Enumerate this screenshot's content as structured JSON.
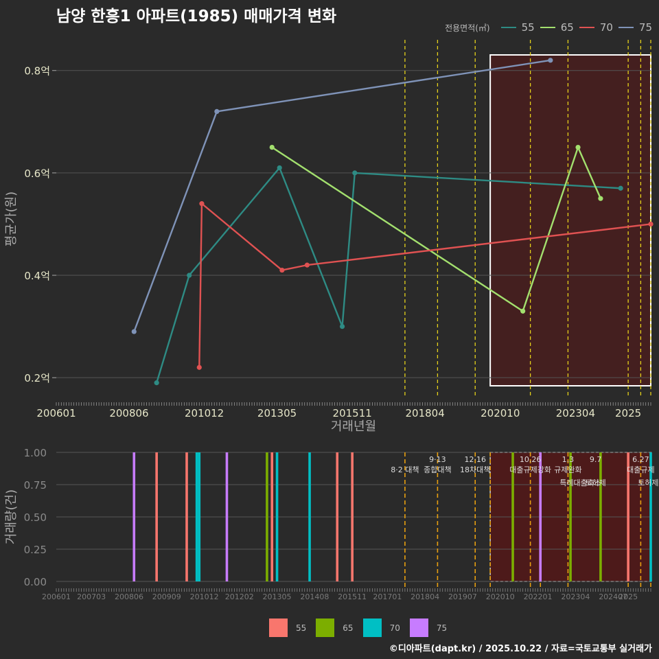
{
  "title": "남양 한흥1 아파트(1985) 매매가격 변화",
  "caption": "©디아파트(dapt.kr) / 2025.10.22 / 자료=국토교통부 실거래가",
  "legend_title": "전용면적(㎡)",
  "colors": {
    "background": "#2a2a2a",
    "grid": "#555555",
    "policy_line": "#e6d21a",
    "policy_line_bottom": "#e8a010",
    "highlight_fill": "#5a1616",
    "highlight_border": "#ffffff",
    "price_55": "#2e8b84",
    "price_65": "#a3e06e",
    "price_70": "#e05252",
    "price_75": "#7f93b8",
    "vol_55": "#f8766d",
    "vol_65": "#7cae00",
    "vol_70": "#00bfc4",
    "vol_75": "#c77cff"
  },
  "chart_data": [
    {
      "type": "line",
      "title": "남양 한흥1 아파트(1985) 매매가격 변화",
      "xlabel": "거래년월",
      "ylabel": "평균가(원)",
      "x_range": [
        "2006-01",
        "2025-10"
      ],
      "ylim": [
        0.16,
        0.86
      ],
      "y_ticks": [
        0.2,
        0.4,
        0.6,
        0.8
      ],
      "y_tick_labels": [
        "0.2억",
        "0.4억",
        "0.6억",
        "0.8억"
      ],
      "x_tick_labels": [
        "200601",
        "200806",
        "201012",
        "201305",
        "201511",
        "201804",
        "202010",
        "202304",
        "2025"
      ],
      "series": [
        {
          "name": "55",
          "points": [
            [
              "2009-05",
              0.19
            ],
            [
              "2010-06",
              0.4
            ],
            [
              "2013-06",
              0.61
            ],
            [
              "2015-07",
              0.3
            ],
            [
              "2015-12",
              0.6
            ],
            [
              "2024-10",
              0.57
            ]
          ]
        },
        {
          "name": "65",
          "points": [
            [
              "2013-03",
              0.65
            ],
            [
              "2021-07",
              0.33
            ],
            [
              "2023-05",
              0.65
            ],
            [
              "2024-02",
              0.55
            ]
          ]
        },
        {
          "name": "70",
          "points": [
            [
              "2010-10",
              0.22
            ],
            [
              "2010-11",
              0.54
            ],
            [
              "2013-07",
              0.41
            ],
            [
              "2014-05",
              0.42
            ],
            [
              "2025-10",
              0.5
            ]
          ]
        },
        {
          "name": "75",
          "points": [
            [
              "2008-08",
              0.29
            ],
            [
              "2011-05",
              0.72
            ],
            [
              "2022-06",
              0.82
            ]
          ]
        }
      ],
      "policy_events": [
        "2017-08",
        "2018-09",
        "2019-12",
        "2021-10",
        "2023-01",
        "2025-01",
        "2025-06",
        "2025-10"
      ],
      "highlight_range": [
        "2020-06",
        "2025-10"
      ]
    },
    {
      "type": "bar",
      "xlabel": "",
      "ylabel": "거래량(건)",
      "x_range": [
        "2006-01",
        "2025-10"
      ],
      "ylim": [
        0,
        1.0
      ],
      "y_ticks": [
        0,
        0.25,
        0.5,
        0.75,
        1.0
      ],
      "y_tick_labels": [
        "0.00",
        "0.25",
        "0.50",
        "0.75",
        "1.00"
      ],
      "x_tick_labels": [
        "200601",
        "200703",
        "200806",
        "200909",
        "201012",
        "201202",
        "201305",
        "201408",
        "201511",
        "201701",
        "201804",
        "201907",
        "202010",
        "202201",
        "202304",
        "202407",
        "2025"
      ],
      "bars": [
        {
          "date": "2008-08",
          "series": "75",
          "value": 1
        },
        {
          "date": "2009-05",
          "series": "55",
          "value": 1
        },
        {
          "date": "2010-05",
          "series": "55",
          "value": 1
        },
        {
          "date": "2010-09",
          "series": "70",
          "value": 1
        },
        {
          "date": "2010-10",
          "series": "70",
          "value": 1
        },
        {
          "date": "2011-09",
          "series": "75",
          "value": 1
        },
        {
          "date": "2013-01",
          "series": "65",
          "value": 1
        },
        {
          "date": "2013-03",
          "series": "55",
          "value": 1
        },
        {
          "date": "2013-05",
          "series": "70",
          "value": 1
        },
        {
          "date": "2014-06",
          "series": "70",
          "value": 1
        },
        {
          "date": "2015-05",
          "series": "55",
          "value": 1
        },
        {
          "date": "2015-11",
          "series": "55",
          "value": 1
        },
        {
          "date": "2021-03",
          "series": "65",
          "value": 1
        },
        {
          "date": "2022-02",
          "series": "75",
          "value": 1
        },
        {
          "date": "2023-02",
          "series": "65",
          "value": 1
        },
        {
          "date": "2024-02",
          "series": "65",
          "value": 1
        },
        {
          "date": "2025-01",
          "series": "55",
          "value": 1
        },
        {
          "date": "2025-10",
          "series": "70",
          "value": 1
        }
      ],
      "policy_events": [
        "2017-08",
        "2018-09",
        "2019-12",
        "2020-06",
        "2021-10",
        "2022-02",
        "2023-01",
        "2025-01",
        "2025-06",
        "2025-10"
      ],
      "policy_annotations": [
        {
          "date": "2017-08",
          "date_label": "",
          "label": "8·2 대책",
          "row": 1
        },
        {
          "date": "2018-09",
          "date_label": "9·13",
          "label": "종합대책",
          "row": 1
        },
        {
          "date": "2019-12",
          "date_label": "12·16",
          "label": "18차대책",
          "row": 1
        },
        {
          "date": "2021-10",
          "date_label": "10.26",
          "label": "대출규제강화",
          "row": 1
        },
        {
          "date": "2023-01",
          "date_label": "1.3",
          "label": "규제완화",
          "row": 1
        },
        {
          "date": "2023-06",
          "date_label": "",
          "label": "특례대출축소",
          "row": 2
        },
        {
          "date": "2023-12",
          "date_label": "9.7",
          "label": "토허제",
          "row": 2
        },
        {
          "date": "2025-06",
          "date_label": "6.27",
          "label": "대출규제",
          "row": 1
        },
        {
          "date": "2025-09",
          "date_label": "",
          "label": "토허제",
          "row": 2
        }
      ],
      "highlight_range": [
        "2020-06",
        "2025-10"
      ]
    }
  ]
}
